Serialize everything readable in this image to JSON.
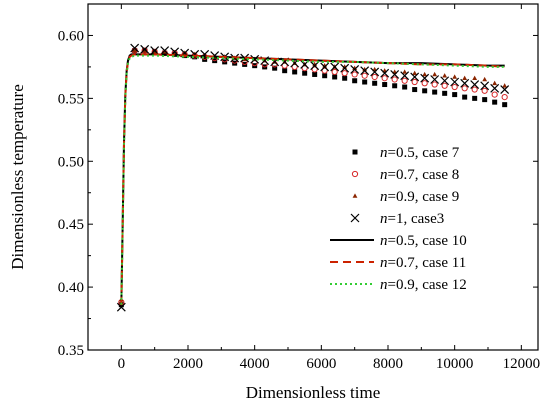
{
  "chart_data": {
    "type": "scatter",
    "xlabel": "Dimensionless time",
    "ylabel": "Dimensionless temperature",
    "xlim": [
      -1000,
      12500
    ],
    "ylim": [
      0.35,
      0.625
    ],
    "x_ticks": [
      0,
      2000,
      4000,
      6000,
      8000,
      10000,
      12000
    ],
    "y_ticks": [
      0.35,
      0.4,
      0.45,
      0.5,
      0.55,
      0.6
    ],
    "x_tick_labels": [
      "0",
      "2000",
      "4000",
      "6000",
      "8000",
      "10000",
      "12000"
    ],
    "y_tick_labels": [
      "0.35",
      "0.40",
      "0.45",
      "0.50",
      "0.55",
      "0.60"
    ],
    "grid": false,
    "legend_position": "right",
    "series": [
      {
        "name": "n=0.5, case 7",
        "legend_italic": "n",
        "legend_rest": "=0.5, case 7",
        "render": "marker",
        "marker": "square",
        "color": "#000000",
        "x": [
          0,
          400,
          700,
          1000,
          1300,
          1600,
          1900,
          2200,
          2500,
          2800,
          3100,
          3400,
          3700,
          4000,
          4300,
          4600,
          4900,
          5200,
          5500,
          5800,
          6100,
          6400,
          6700,
          7000,
          7300,
          7600,
          7900,
          8200,
          8500,
          8800,
          9100,
          9400,
          9700,
          10000,
          10300,
          10600,
          10900,
          11200,
          11500
        ],
        "y": [
          0.386,
          0.588,
          0.588,
          0.587,
          0.586,
          0.585,
          0.584,
          0.583,
          0.581,
          0.58,
          0.579,
          0.578,
          0.577,
          0.576,
          0.575,
          0.574,
          0.572,
          0.571,
          0.57,
          0.569,
          0.568,
          0.567,
          0.566,
          0.564,
          0.563,
          0.562,
          0.561,
          0.56,
          0.559,
          0.557,
          0.556,
          0.555,
          0.554,
          0.553,
          0.551,
          0.55,
          0.549,
          0.547,
          0.545
        ]
      },
      {
        "name": "n=0.7, case 8",
        "legend_italic": "n",
        "legend_rest": "=0.7, case 8",
        "render": "marker",
        "marker": "open-circle",
        "color": "#d62728",
        "x": [
          0,
          400,
          700,
          1000,
          1300,
          1600,
          1900,
          2200,
          2500,
          2800,
          3100,
          3400,
          3700,
          4000,
          4300,
          4600,
          4900,
          5200,
          5500,
          5800,
          6100,
          6400,
          6700,
          7000,
          7300,
          7600,
          7900,
          8200,
          8500,
          8800,
          9100,
          9400,
          9700,
          10000,
          10300,
          10600,
          10900,
          11200,
          11500
        ],
        "y": [
          0.388,
          0.588,
          0.588,
          0.587,
          0.586,
          0.586,
          0.585,
          0.584,
          0.583,
          0.582,
          0.581,
          0.58,
          0.579,
          0.578,
          0.577,
          0.577,
          0.576,
          0.575,
          0.574,
          0.573,
          0.572,
          0.571,
          0.57,
          0.569,
          0.568,
          0.567,
          0.566,
          0.565,
          0.564,
          0.563,
          0.562,
          0.561,
          0.56,
          0.559,
          0.558,
          0.557,
          0.556,
          0.553,
          0.551
        ]
      },
      {
        "name": "n=0.9, case 9",
        "legend_italic": "n",
        "legend_rest": "=0.9, case 9",
        "render": "marker",
        "marker": "triangle",
        "color": "#8b2500",
        "x": [
          0,
          400,
          700,
          1000,
          1300,
          1600,
          1900,
          2200,
          2500,
          2800,
          3100,
          3400,
          3700,
          4000,
          4300,
          4600,
          4900,
          5200,
          5500,
          5800,
          6100,
          6400,
          6700,
          7000,
          7300,
          7600,
          7900,
          8200,
          8500,
          8800,
          9100,
          9400,
          9700,
          10000,
          10300,
          10600,
          10900,
          11200,
          11500
        ],
        "y": [
          0.39,
          0.588,
          0.588,
          0.587,
          0.587,
          0.586,
          0.586,
          0.585,
          0.584,
          0.583,
          0.583,
          0.582,
          0.581,
          0.581,
          0.58,
          0.579,
          0.579,
          0.578,
          0.577,
          0.577,
          0.576,
          0.575,
          0.575,
          0.574,
          0.573,
          0.573,
          0.572,
          0.571,
          0.571,
          0.57,
          0.569,
          0.569,
          0.568,
          0.567,
          0.566,
          0.566,
          0.565,
          0.562,
          0.56
        ]
      },
      {
        "name": "n=1, case3",
        "legend_italic": "n",
        "legend_rest": "=1, case3",
        "render": "marker",
        "marker": "x",
        "color": "#000000",
        "x": [
          0,
          400,
          700,
          1000,
          1300,
          1600,
          1900,
          2200,
          2500,
          2800,
          3100,
          3400,
          3700,
          4000,
          4300,
          4600,
          4900,
          5200,
          5500,
          5800,
          6100,
          6400,
          6700,
          7000,
          7300,
          7600,
          7900,
          8200,
          8500,
          8800,
          9100,
          9400,
          9700,
          10000,
          10300,
          10600,
          10900,
          11200,
          11500
        ],
        "y": [
          0.384,
          0.59,
          0.589,
          0.588,
          0.588,
          0.587,
          0.586,
          0.585,
          0.585,
          0.584,
          0.583,
          0.582,
          0.582,
          0.581,
          0.58,
          0.579,
          0.579,
          0.578,
          0.577,
          0.576,
          0.575,
          0.575,
          0.574,
          0.573,
          0.572,
          0.571,
          0.57,
          0.569,
          0.568,
          0.567,
          0.566,
          0.565,
          0.564,
          0.563,
          0.562,
          0.561,
          0.56,
          0.558,
          0.557
        ]
      },
      {
        "name": "n=0.5, case 10",
        "legend_italic": "n",
        "legend_rest": "=0.5, case 10",
        "render": "line",
        "dash": "solid",
        "color": "#000000",
        "x": [
          0,
          40,
          80,
          120,
          160,
          200,
          250,
          300,
          400,
          600,
          1000,
          2000,
          3000,
          4000,
          5000,
          6000,
          7000,
          8000,
          9000,
          10000,
          11000,
          11500
        ],
        "y": [
          0.386,
          0.45,
          0.515,
          0.553,
          0.572,
          0.58,
          0.584,
          0.585,
          0.585,
          0.585,
          0.585,
          0.584,
          0.583,
          0.582,
          0.581,
          0.58,
          0.579,
          0.578,
          0.578,
          0.577,
          0.576,
          0.576
        ]
      },
      {
        "name": "n=0.7, case 11",
        "legend_italic": "n",
        "legend_rest": "=0.7, case 11",
        "render": "line",
        "dash": "dashed",
        "color": "#cc2200",
        "x": [
          0,
          40,
          80,
          120,
          160,
          200,
          250,
          300,
          400,
          600,
          1000,
          2000,
          3000,
          4000,
          5000,
          6000,
          7000,
          8000,
          9000,
          10000,
          11000,
          11500
        ],
        "y": [
          0.386,
          0.45,
          0.514,
          0.552,
          0.571,
          0.579,
          0.583,
          0.584,
          0.585,
          0.585,
          0.585,
          0.584,
          0.583,
          0.582,
          0.581,
          0.58,
          0.579,
          0.578,
          0.577,
          0.577,
          0.576,
          0.575
        ]
      },
      {
        "name": "n=0.9, case 12",
        "legend_italic": "n",
        "legend_rest": "=0.9, case 12",
        "render": "line",
        "dash": "dotted",
        "color": "#33cc33",
        "x": [
          0,
          40,
          80,
          120,
          160,
          200,
          250,
          300,
          400,
          600,
          1000,
          2000,
          3000,
          4000,
          5000,
          6000,
          7000,
          8000,
          9000,
          10000,
          11000,
          11500
        ],
        "y": [
          0.386,
          0.449,
          0.513,
          0.551,
          0.57,
          0.578,
          0.582,
          0.583,
          0.584,
          0.584,
          0.584,
          0.583,
          0.582,
          0.581,
          0.58,
          0.579,
          0.579,
          0.578,
          0.577,
          0.576,
          0.575,
          0.575
        ]
      }
    ]
  }
}
